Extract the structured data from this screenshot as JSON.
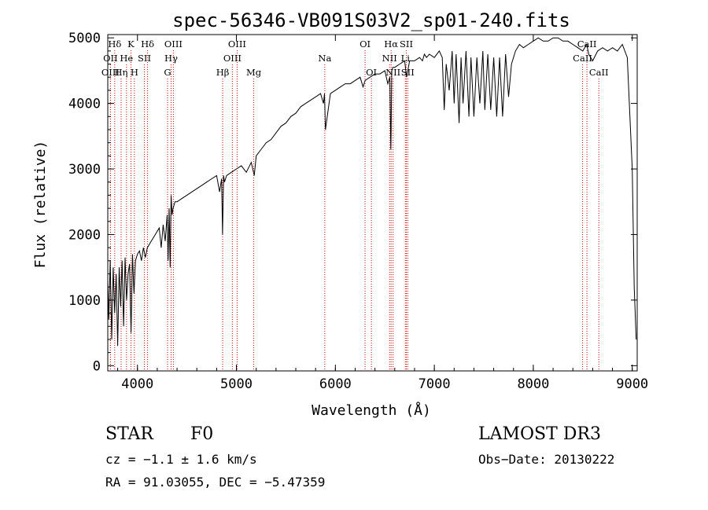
{
  "chart_data": {
    "type": "line",
    "title": "spec-56346-VB091S03V2_sp01-240.fits",
    "xlabel": "Wavelength (Å)",
    "ylabel": "Flux (relative)",
    "xlim": [
      3700,
      9050
    ],
    "ylim": [
      -80,
      5050
    ],
    "xticks": [
      4000,
      5000,
      6000,
      7000,
      8000,
      9000
    ],
    "yticks": [
      0,
      1000,
      2000,
      3000,
      4000,
      5000
    ],
    "series": [
      {
        "name": "flux",
        "x": [
          3700,
          3710,
          3725,
          3740,
          3755,
          3770,
          3785,
          3800,
          3815,
          3830,
          3845,
          3860,
          3875,
          3890,
          3905,
          3920,
          3935,
          3950,
          3965,
          3980,
          4000,
          4020,
          4040,
          4060,
          4080,
          4100,
          4120,
          4140,
          4160,
          4180,
          4200,
          4220,
          4240,
          4260,
          4280,
          4300,
          4310,
          4320,
          4330,
          4340,
          4350,
          4360,
          4380,
          4400,
          4450,
          4500,
          4550,
          4600,
          4650,
          4700,
          4750,
          4800,
          4830,
          4850,
          4860,
          4870,
          4880,
          4900,
          4950,
          5000,
          5050,
          5100,
          5150,
          5180,
          5200,
          5250,
          5300,
          5350,
          5400,
          5450,
          5500,
          5550,
          5600,
          5650,
          5700,
          5750,
          5800,
          5850,
          5880,
          5890,
          5900,
          5950,
          6000,
          6050,
          6100,
          6150,
          6200,
          6250,
          6280,
          6300,
          6350,
          6400,
          6450,
          6500,
          6530,
          6550,
          6560,
          6563,
          6570,
          6580,
          6600,
          6650,
          6700,
          6720,
          6750,
          6800,
          6850,
          6880,
          6900,
          6920,
          6950,
          7000,
          7050,
          7080,
          7100,
          7120,
          7150,
          7180,
          7200,
          7220,
          7250,
          7270,
          7290,
          7320,
          7350,
          7370,
          7400,
          7430,
          7460,
          7490,
          7510,
          7540,
          7570,
          7600,
          7630,
          7660,
          7690,
          7720,
          7750,
          7780,
          7820,
          7860,
          7900,
          7950,
          8000,
          8050,
          8100,
          8150,
          8200,
          8250,
          8300,
          8350,
          8400,
          8450,
          8500,
          8540,
          8560,
          8600,
          8650,
          8700,
          8750,
          8800,
          8850,
          8900,
          8950,
          9000,
          9020,
          9040
        ],
        "values": [
          1300,
          700,
          1600,
          400,
          1500,
          800,
          1400,
          300,
          1500,
          900,
          1600,
          600,
          1650,
          1000,
          1400,
          1550,
          500,
          1700,
          1100,
          1600,
          1700,
          1750,
          1600,
          1800,
          1650,
          1800,
          1850,
          1900,
          1950,
          2000,
          2050,
          2100,
          1800,
          2150,
          1900,
          2300,
          1600,
          2400,
          1500,
          2600,
          2300,
          2400,
          2500,
          2500,
          2550,
          2600,
          2650,
          2700,
          2750,
          2800,
          2850,
          2900,
          2650,
          2850,
          2000,
          2900,
          2800,
          2900,
          2950,
          3000,
          3050,
          2950,
          3100,
          2900,
          3200,
          3300,
          3400,
          3450,
          3550,
          3650,
          3700,
          3800,
          3850,
          3950,
          4000,
          4050,
          4100,
          4150,
          4000,
          4150,
          3600,
          4150,
          4200,
          4250,
          4300,
          4300,
          4350,
          4400,
          4250,
          4350,
          4400,
          4450,
          4450,
          4500,
          4300,
          4400,
          3300,
          3500,
          4500,
          4550,
          4550,
          4600,
          4650,
          4400,
          4650,
          4650,
          4700,
          4650,
          4750,
          4700,
          4750,
          4700,
          4800,
          4700,
          3900,
          4600,
          4200,
          4800,
          4000,
          4750,
          3700,
          4700,
          4000,
          4800,
          3800,
          4700,
          3800,
          4700,
          4000,
          4800,
          3900,
          4750,
          3900,
          4700,
          3800,
          4700,
          3800,
          4750,
          4100,
          4600,
          4800,
          4900,
          4850,
          4900,
          4950,
          5000,
          4950,
          4950,
          5000,
          5000,
          4950,
          4950,
          4900,
          4850,
          4800,
          4900,
          4750,
          4650,
          4800,
          4850,
          4800,
          4850,
          4800,
          4900,
          4700,
          3000,
          1200,
          400
        ]
      }
    ],
    "spectral_lines": [
      {
        "label": "Hδ",
        "wl": 3770,
        "row": 0
      },
      {
        "label": "K",
        "wl": 3934,
        "row": 0
      },
      {
        "label": "Hδ",
        "wl": 4102,
        "row": 0
      },
      {
        "label": "OIII",
        "wl": 4363,
        "row": 0
      },
      {
        "label": "OIII",
        "wl": 5007,
        "row": 0
      },
      {
        "label": "OI",
        "wl": 6300,
        "row": 0
      },
      {
        "label": "Hα",
        "wl": 6563,
        "row": 0
      },
      {
        "label": "SII",
        "wl": 6717,
        "row": 0
      },
      {
        "label": "CaII",
        "wl": 8542,
        "row": 0
      },
      {
        "label": "OII",
        "wl": 3727,
        "row": 1
      },
      {
        "label": "He",
        "wl": 3889,
        "row": 1
      },
      {
        "label": "SII",
        "wl": 4070,
        "row": 1
      },
      {
        "label": "Hγ",
        "wl": 4340,
        "row": 1
      },
      {
        "label": "OIII",
        "wl": 4959,
        "row": 1
      },
      {
        "label": "NII",
        "wl": 6548,
        "row": 1
      },
      {
        "label": "Li",
        "wl": 6707,
        "row": 1
      },
      {
        "label": "CaII",
        "wl": 8498,
        "row": 1
      },
      {
        "label": "OIII",
        "wl": 3727,
        "row": 2
      },
      {
        "label": "Hη",
        "wl": 3835,
        "row": 2
      },
      {
        "label": "H",
        "wl": 3969,
        "row": 2
      },
      {
        "label": "G",
        "wl": 4304,
        "row": 2
      },
      {
        "label": "Hβ",
        "wl": 4861,
        "row": 2
      },
      {
        "label": "Mg",
        "wl": 5175,
        "row": 2
      },
      {
        "label": "Na",
        "wl": 5893,
        "row": 1
      },
      {
        "label": "OI",
        "wl": 6364,
        "row": 2
      },
      {
        "label": "NII",
        "wl": 6583,
        "row": 2
      },
      {
        "label": "SII",
        "wl": 6731,
        "row": 2
      },
      {
        "label": "CaII",
        "wl": 8662,
        "row": 2
      }
    ]
  },
  "info": {
    "class_label": "STAR",
    "subclass": "F0",
    "survey": "LAMOST DR3",
    "cz": "cz = −1.1 ± 1.6 km/s",
    "obs_date": "Obs−Date: 20130222",
    "radec": "RA =  91.03055, DEC =  −5.47359"
  },
  "colors": {
    "spectrum": "#000000",
    "line_marker": "#cc0000",
    "axes": "#000000"
  }
}
